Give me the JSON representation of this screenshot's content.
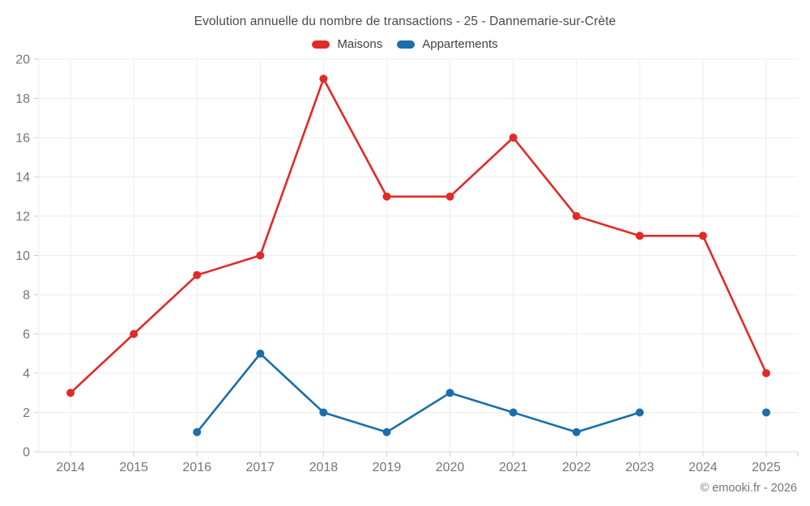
{
  "header": {
    "title": "Evolution annuelle du nombre de transactions - 25 - Dannemarie-sur-Crète"
  },
  "legend": {
    "items": [
      {
        "label": "Maisons",
        "color": "#e22a27"
      },
      {
        "label": "Appartements",
        "color": "#1a6ea9"
      }
    ]
  },
  "footer": {
    "credit": "© emooki.fr - 2026"
  },
  "chart_data": {
    "type": "line",
    "title": "Evolution annuelle du nombre de transactions - 25 - Dannemarie-sur-Crète",
    "categories": [
      "2014",
      "2015",
      "2016",
      "2017",
      "2018",
      "2019",
      "2020",
      "2021",
      "2022",
      "2023",
      "2024",
      "2025"
    ],
    "series": [
      {
        "name": "Maisons",
        "color": "#e22a27",
        "values": [
          3,
          6,
          9,
          10,
          19,
          13,
          13,
          16,
          12,
          11,
          11,
          4
        ]
      },
      {
        "name": "Appartements",
        "color": "#1a6ea9",
        "values": [
          null,
          null,
          1,
          5,
          2,
          1,
          3,
          2,
          1,
          2,
          null,
          2
        ]
      }
    ],
    "xlabel": "",
    "ylabel": "",
    "ylim": [
      0,
      20
    ],
    "ytick_step": 2,
    "grid": true,
    "legend_position": "top",
    "colors": {
      "grid_line": "#ededed",
      "axis_line": "#d9d9d9",
      "tick_mark": "#cfcfcf",
      "tick_label": "#757575"
    }
  }
}
